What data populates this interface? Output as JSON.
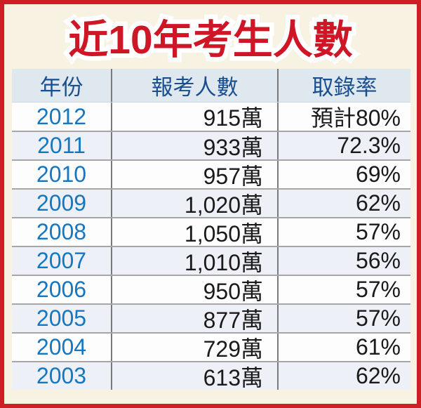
{
  "title": "近10年考生人數",
  "table": {
    "headers": [
      "年份",
      "報考人數",
      "取錄率"
    ],
    "rows": [
      {
        "year": "2012",
        "applicants": "915萬",
        "rate": "預計80%"
      },
      {
        "year": "2011",
        "applicants": "933萬",
        "rate": "72.3%"
      },
      {
        "year": "2010",
        "applicants": "957萬",
        "rate": "69%"
      },
      {
        "year": "2009",
        "applicants": "1,020萬",
        "rate": "62%"
      },
      {
        "year": "2008",
        "applicants": "1,050萬",
        "rate": "57%"
      },
      {
        "year": "2007",
        "applicants": "1,010萬",
        "rate": "56%"
      },
      {
        "year": "2006",
        "applicants": "950萬",
        "rate": "57%"
      },
      {
        "year": "2005",
        "applicants": "877萬",
        "rate": "57%"
      },
      {
        "year": "2004",
        "applicants": "729萬",
        "rate": "61%"
      },
      {
        "year": "2003",
        "applicants": "613萬",
        "rate": "62%"
      }
    ]
  },
  "chart_data": {
    "type": "table",
    "title": "近10年考生人數",
    "columns": [
      "年份",
      "報考人數",
      "取錄率"
    ],
    "rows": [
      [
        "2012",
        "915萬",
        "預計80%"
      ],
      [
        "2011",
        "933萬",
        "72.3%"
      ],
      [
        "2010",
        "957萬",
        "69%"
      ],
      [
        "2009",
        "1,020萬",
        "62%"
      ],
      [
        "2008",
        "1,050萬",
        "57%"
      ],
      [
        "2007",
        "1,010萬",
        "56%"
      ],
      [
        "2006",
        "950萬",
        "57%"
      ],
      [
        "2005",
        "877萬",
        "57%"
      ],
      [
        "2004",
        "729萬",
        "61%"
      ],
      [
        "2003",
        "613萬",
        "62%"
      ]
    ],
    "years": [
      2012,
      2011,
      2010,
      2009,
      2008,
      2007,
      2006,
      2005,
      2004,
      2003
    ],
    "applicants_wan": [
      915,
      933,
      957,
      1020,
      1050,
      1010,
      950,
      877,
      729,
      613
    ],
    "admission_rate_pct": [
      80,
      72.3,
      69,
      62,
      57,
      56,
      57,
      57,
      61,
      62
    ]
  },
  "colors": {
    "frame_border": "#cf1f26",
    "background_cream": "#f8f2e3",
    "title_red": "#ce1626",
    "title_outline": "#ffffff",
    "header_bg": "#dfe7ef",
    "header_text": "#1a4f8f",
    "year_blue": "#1577c0",
    "data_text": "#1a1a1a",
    "row_alt_bg": "#edf1f7",
    "row_bg": "#fdfdfe",
    "h_divider": "#a6a6a6",
    "v_divider": "#7a7a7a"
  }
}
